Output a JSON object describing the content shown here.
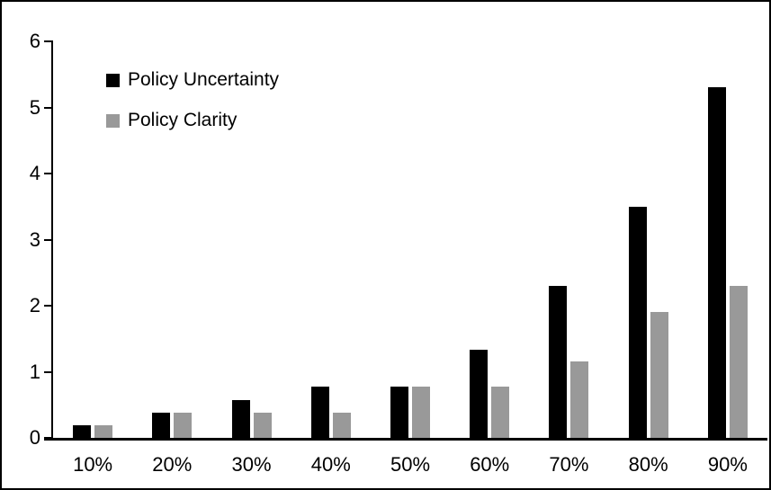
{
  "figure": {
    "background": "#ffffff",
    "border_color": "#000000"
  },
  "chart_data": {
    "type": "bar",
    "title": "",
    "xlabel": "",
    "ylabel": "",
    "categories": [
      "10%",
      "20%",
      "30%",
      "40%",
      "50%",
      "60%",
      "70%",
      "80%",
      "90%"
    ],
    "series": [
      {
        "name": "Policy Uncertainty",
        "color": "#000000",
        "values": [
          0.19,
          0.38,
          0.57,
          0.77,
          0.78,
          1.33,
          2.3,
          3.5,
          5.3
        ]
      },
      {
        "name": "Policy Clarity",
        "color": "#999999",
        "values": [
          0.19,
          0.38,
          0.38,
          0.38,
          0.77,
          0.77,
          1.15,
          1.9,
          2.3
        ]
      }
    ],
    "ylim": [
      0,
      6
    ],
    "yticks": [
      0,
      1,
      2,
      3,
      4,
      5,
      6
    ],
    "grid": false,
    "legend_position": "top-left"
  }
}
